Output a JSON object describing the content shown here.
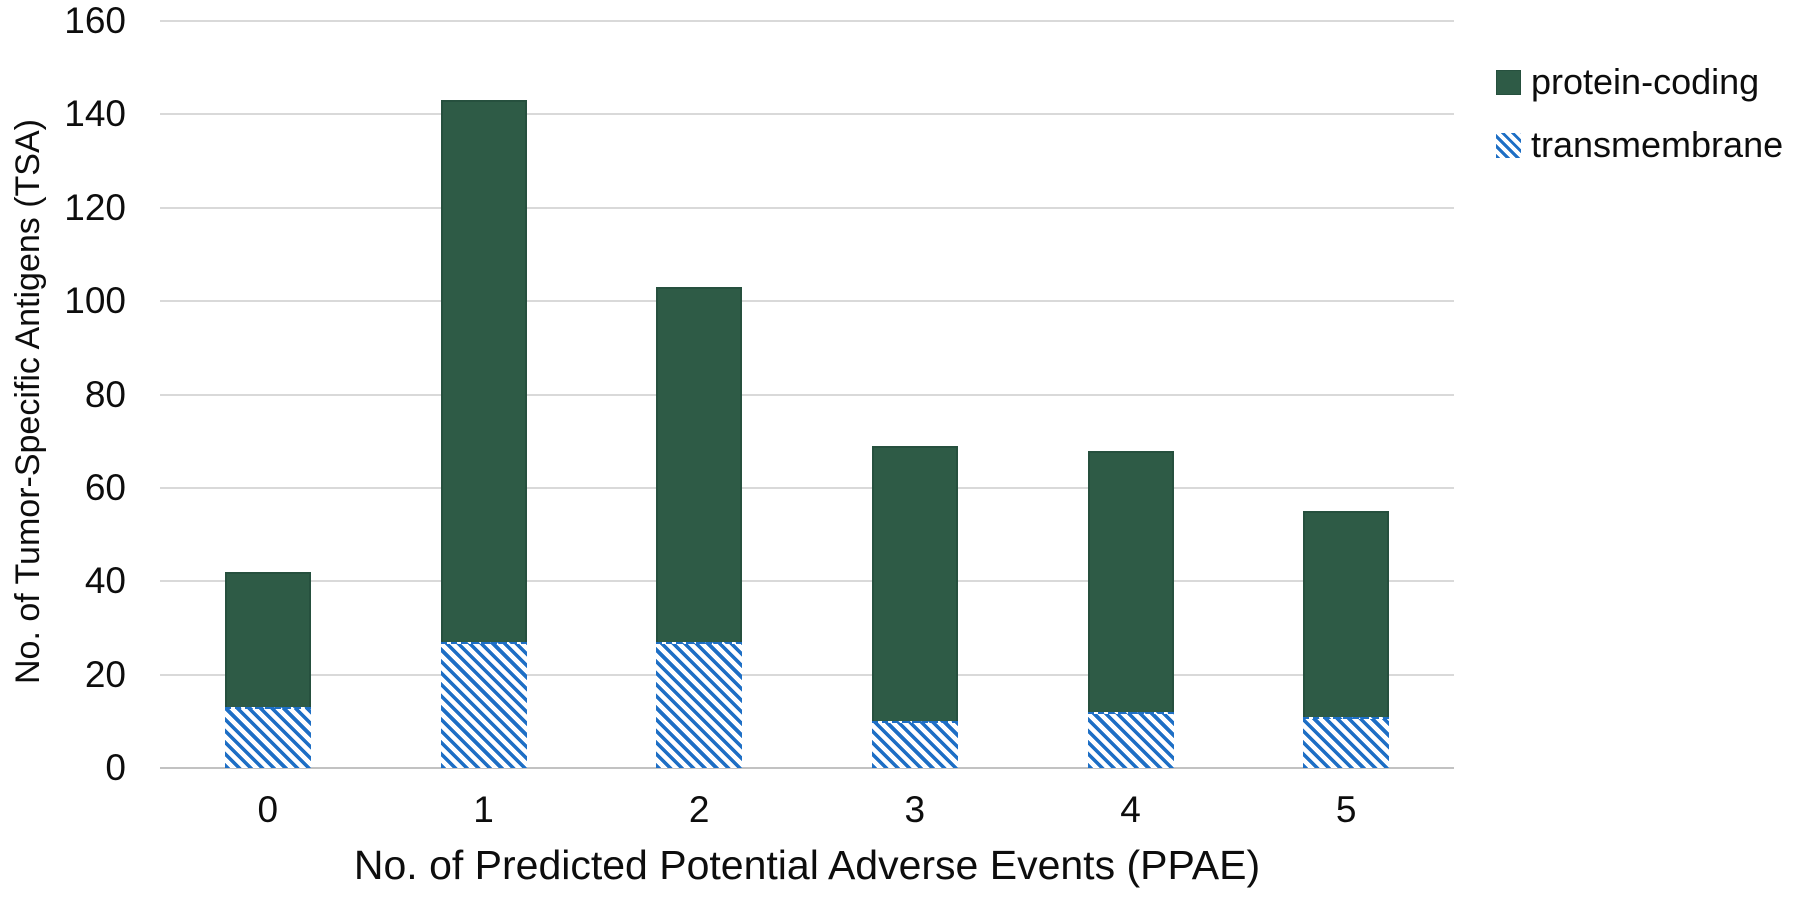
{
  "figure": {
    "background": "#ffffff"
  },
  "legend": {
    "position": "top-right-outside",
    "items": [
      {
        "label": "protein-coding",
        "swatch": "solid-dark-green-square"
      },
      {
        "label": "transmembrane",
        "swatch": "blue-diagonal-hatch-square"
      }
    ]
  },
  "colors": {
    "protein_coding_fill": "#2e5b46",
    "protein_coding_border": "#26503e",
    "transmembrane_stripe": "#1e6fc5",
    "gridline": "#d9d9d9",
    "axis_line": "#c2c2c2",
    "text": "#0d0d0d",
    "background": "#ffffff"
  },
  "chart_data": {
    "type": "bar",
    "subtype": "overlay (hatched series is lower subset portion of each bar)",
    "categories": [
      "0",
      "1",
      "2",
      "3",
      "4",
      "5"
    ],
    "series": [
      {
        "name": "protein-coding",
        "role": "total-bar-height",
        "values": [
          42,
          143,
          103,
          69,
          68,
          55
        ]
      },
      {
        "name": "transmembrane",
        "role": "bottom-overlay",
        "values": [
          13,
          27,
          27,
          10,
          12,
          11
        ]
      }
    ],
    "title": "",
    "xlabel": "No. of Predicted Potential Adverse Events (PPAE)",
    "ylabel": "No. of Tumor-Specific Antigens (TSA)",
    "ylim": [
      0,
      160
    ],
    "yticks": [
      0,
      20,
      40,
      60,
      80,
      100,
      120,
      140,
      160
    ],
    "grid": "horizontal",
    "legend_position": "top-right"
  }
}
